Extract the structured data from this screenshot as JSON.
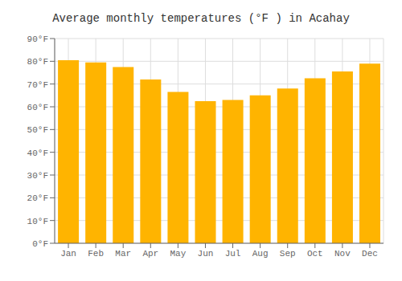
{
  "chart_data": {
    "type": "bar",
    "title": "Average monthly temperatures (°F ) in Acahay",
    "categories": [
      "Jan",
      "Feb",
      "Mar",
      "Apr",
      "May",
      "Jun",
      "Jul",
      "Aug",
      "Sep",
      "Oct",
      "Nov",
      "Dec"
    ],
    "values": [
      80.5,
      79.5,
      77.5,
      72.0,
      66.5,
      62.5,
      63.0,
      65.0,
      68.0,
      72.5,
      75.5,
      79.0
    ],
    "color": "#FFB400",
    "ylim": [
      0,
      90
    ],
    "yticks": [
      {
        "value": 0,
        "label": "0°F"
      },
      {
        "value": 10,
        "label": "10°F"
      },
      {
        "value": 20,
        "label": "20°F"
      },
      {
        "value": 30,
        "label": "30°F"
      },
      {
        "value": 40,
        "label": "40°F"
      },
      {
        "value": 50,
        "label": "50°F"
      },
      {
        "value": 60,
        "label": "60°F"
      },
      {
        "value": 70,
        "label": "70°F"
      },
      {
        "value": 80,
        "label": "80°F"
      },
      {
        "value": 90,
        "label": "90°F"
      }
    ],
    "grid": true
  }
}
